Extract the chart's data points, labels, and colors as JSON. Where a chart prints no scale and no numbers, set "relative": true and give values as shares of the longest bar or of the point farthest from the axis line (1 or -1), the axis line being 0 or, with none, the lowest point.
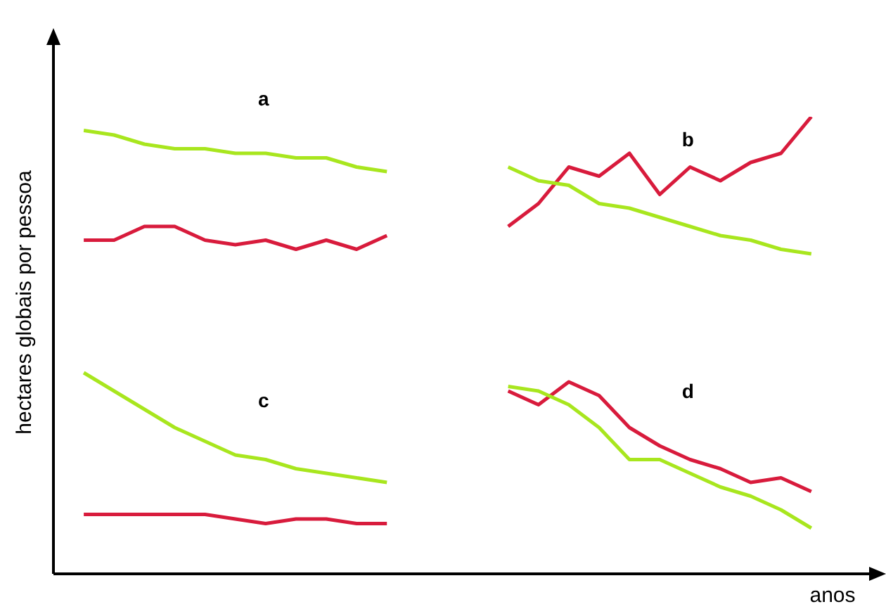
{
  "chart_data": {
    "type": "line",
    "relative": true,
    "xlabel": "anos",
    "ylabel": "hectares globais por pessoa",
    "annotations": [
      "a",
      "b",
      "c",
      "d"
    ],
    "legend": false,
    "categories": [
      null,
      null,
      null,
      null,
      null,
      null,
      null,
      null,
      null,
      null,
      null,
      null,
      null,
      null,
      null,
      null,
      null,
      null,
      null,
      null,
      null,
      null,
      null,
      null,
      null,
      null,
      null,
      null
    ],
    "series": [
      {
        "color": "#a8e61e",
        "values": [
          null,
          0.97,
          0.96,
          0.94,
          0.93,
          0.93,
          0.92,
          0.92,
          0.91,
          0.91,
          0.89,
          0.88,
          null,
          null,
          null,
          null,
          null,
          null,
          null,
          null,
          null,
          null,
          null,
          null,
          null,
          null,
          null,
          null
        ]
      },
      {
        "color": "#d81b3c",
        "values": [
          null,
          0.73,
          0.73,
          0.76,
          0.76,
          0.73,
          0.72,
          0.73,
          0.71,
          0.73,
          0.71,
          0.74,
          null,
          null,
          null,
          null,
          null,
          null,
          null,
          null,
          null,
          null,
          null,
          null,
          null,
          null,
          null,
          null
        ]
      },
      {
        "color": "#a8e61e",
        "values": [
          null,
          null,
          null,
          null,
          null,
          null,
          null,
          null,
          null,
          null,
          null,
          null,
          null,
          null,
          null,
          0.89,
          0.86,
          0.85,
          0.81,
          0.8,
          0.78,
          0.76,
          0.74,
          0.73,
          0.71,
          0.7,
          null,
          null
        ]
      },
      {
        "color": "#d81b3c",
        "values": [
          null,
          null,
          null,
          null,
          null,
          null,
          null,
          null,
          null,
          null,
          null,
          null,
          null,
          null,
          null,
          0.76,
          0.81,
          0.89,
          0.87,
          0.92,
          0.83,
          0.89,
          0.86,
          0.9,
          0.92,
          1,
          null,
          null
        ]
      },
      {
        "color": "#a8e61e",
        "values": [
          null,
          0.44,
          0.4,
          0.36,
          0.32,
          0.29,
          0.26,
          0.25,
          0.23,
          0.22,
          0.21,
          0.2,
          null,
          null,
          null,
          null,
          null,
          null,
          null,
          null,
          null,
          null,
          null,
          null,
          null,
          null,
          null,
          null
        ]
      },
      {
        "color": "#d81b3c",
        "values": [
          null,
          0.13,
          0.13,
          0.13,
          0.13,
          0.13,
          0.12,
          0.11,
          0.12,
          0.12,
          0.11,
          0.11,
          null,
          null,
          null,
          null,
          null,
          null,
          null,
          null,
          null,
          null,
          null,
          null,
          null,
          null,
          null,
          null
        ]
      },
      {
        "color": "#a8e61e",
        "values": [
          null,
          null,
          null,
          null,
          null,
          null,
          null,
          null,
          null,
          null,
          null,
          null,
          null,
          null,
          null,
          0.41,
          0.4,
          0.37,
          0.32,
          0.25,
          0.25,
          0.22,
          0.19,
          0.17,
          0.14,
          0.1,
          null,
          null
        ]
      },
      {
        "color": "#d81b3c",
        "values": [
          null,
          null,
          null,
          null,
          null,
          null,
          null,
          null,
          null,
          null,
          null,
          null,
          null,
          null,
          null,
          0.4,
          0.37,
          0.42,
          0.39,
          0.32,
          0.28,
          0.25,
          0.23,
          0.2,
          0.21,
          0.18,
          null,
          null
        ]
      }
    ]
  }
}
